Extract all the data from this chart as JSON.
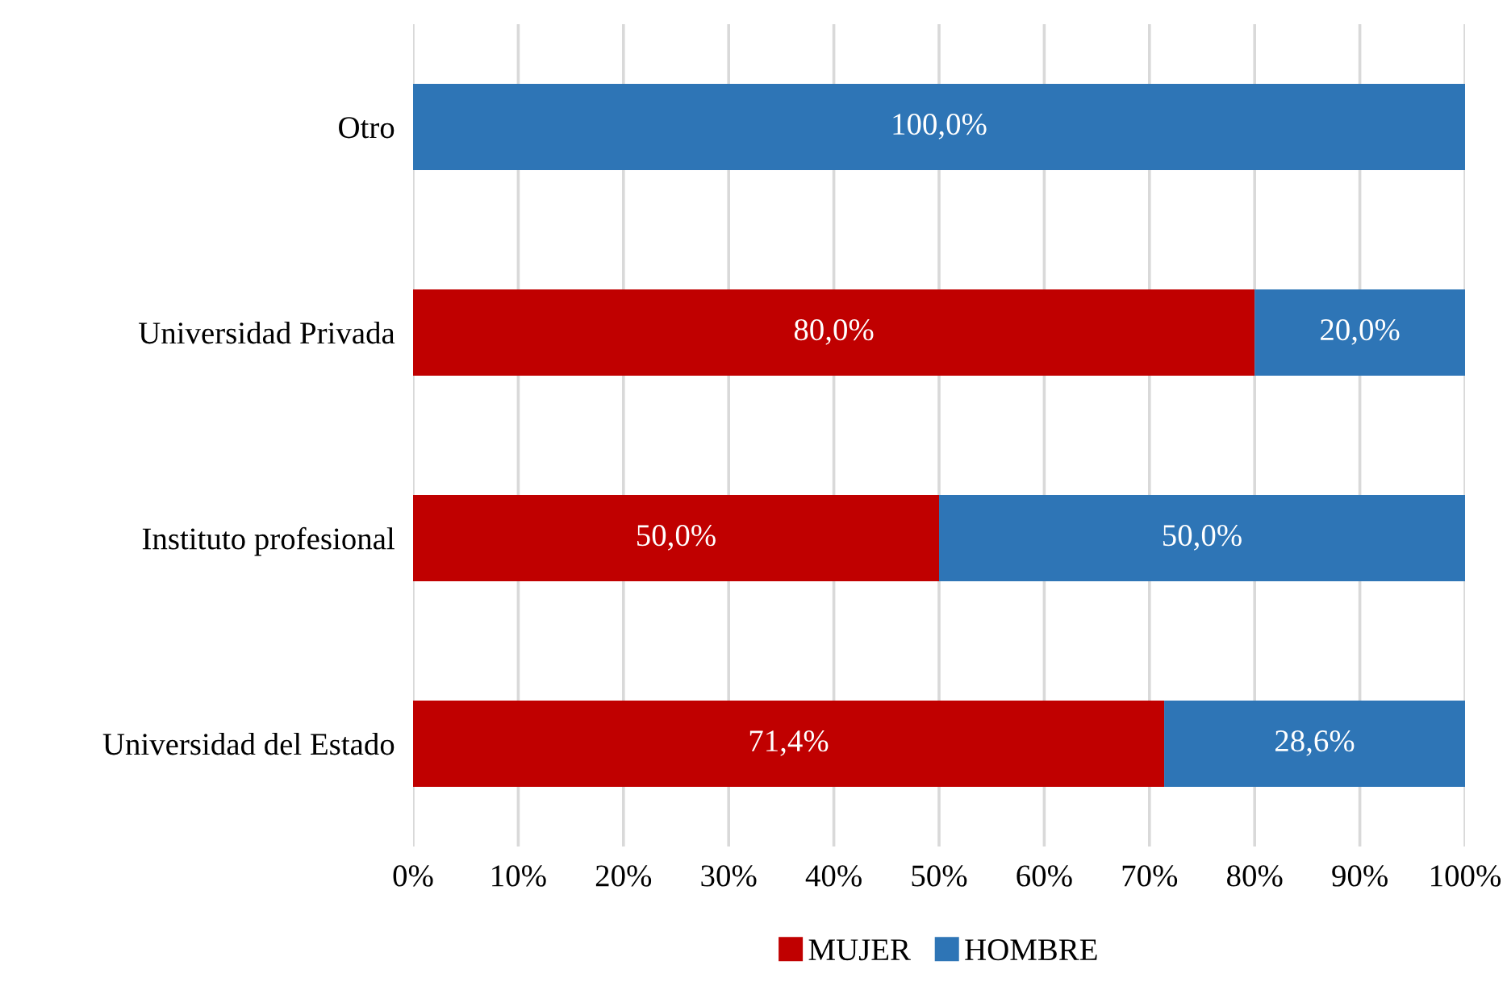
{
  "chart_data": {
    "type": "bar",
    "orientation": "horizontal",
    "stacked": true,
    "categories": [
      "Otro",
      "Universidad Privada",
      "Instituto profesional",
      "Universidad del Estado"
    ],
    "series": [
      {
        "name": "MUJER",
        "color": "#c00000",
        "values": [
          0,
          80.0,
          50.0,
          71.4
        ],
        "value_labels": [
          null,
          "80,0%",
          "50,0%",
          "71,4%"
        ]
      },
      {
        "name": "HOMBRE",
        "color": "#2e75b6",
        "values": [
          100.0,
          20.0,
          50.0,
          28.6
        ],
        "value_labels": [
          "100,0%",
          "20,0%",
          "50,0%",
          "28,6%"
        ]
      }
    ],
    "xlim": [
      0,
      100
    ],
    "xticks": [
      {
        "value": 0,
        "label": "0%"
      },
      {
        "value": 10,
        "label": "10%"
      },
      {
        "value": 20,
        "label": "20%"
      },
      {
        "value": 30,
        "label": "30%"
      },
      {
        "value": 40,
        "label": "40%"
      },
      {
        "value": 50,
        "label": "50%"
      },
      {
        "value": 60,
        "label": "60%"
      },
      {
        "value": 70,
        "label": "70%"
      },
      {
        "value": 80,
        "label": "80%"
      },
      {
        "value": 90,
        "label": "90%"
      },
      {
        "value": 100,
        "label": "100%"
      }
    ],
    "grid": "x",
    "legend": "bottom"
  }
}
